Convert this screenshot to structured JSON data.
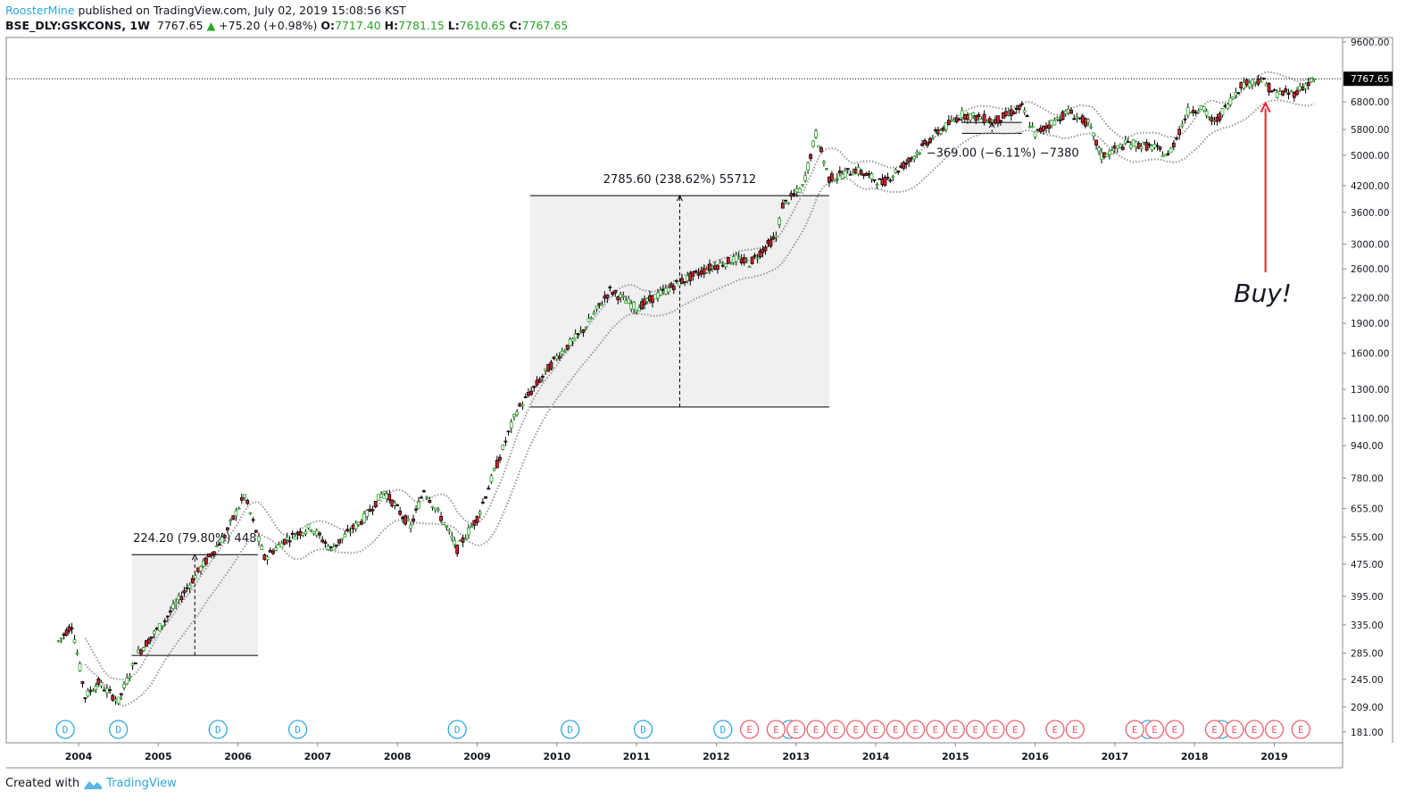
{
  "header": {
    "author": "RoosterMine",
    "published": "published on TradingView.com, July 02, 2019 15:08:56 KST",
    "symbol": "BSE_DLY:GSKCONS, 1W",
    "last": "7767.65",
    "change": "+75.20 (+0.98%)",
    "open_label": "O:",
    "open": "7717.40",
    "high_label": "H:",
    "high": "7781.15",
    "low_label": "L:",
    "low": "7610.65",
    "close_label": "C:",
    "close": "7767.65",
    "up_icon": "triangle-up-icon"
  },
  "footer": {
    "created_with": "Created with",
    "brand": "TradingView"
  },
  "colors": {
    "up": "#26a526",
    "down": "#e0202b",
    "accent": "#2ea6e0",
    "earnings": "#f05d6c",
    "arrow": "#e8202b",
    "box": "#f0f0f0"
  },
  "chart_data": {
    "type": "candlestick",
    "scale": "log",
    "ylim": [
      181,
      9600
    ],
    "xlim": [
      "2003-07",
      "2019-12"
    ],
    "y_ticks": [
      "9600.00",
      "6800.00",
      "5800.00",
      "5000.00",
      "4200.00",
      "3600.00",
      "3000.00",
      "2600.00",
      "2200.00",
      "1900.00",
      "1600.00",
      "1300.00",
      "1100.00",
      "940.00",
      "780.00",
      "655.00",
      "555.00",
      "475.00",
      "395.00",
      "335.00",
      "285.00",
      "245.00",
      "209.00",
      "181.00"
    ],
    "x_ticks": [
      "2004",
      "2005",
      "2006",
      "2007",
      "2008",
      "2009",
      "2010",
      "2011",
      "2012",
      "2013",
      "2014",
      "2015",
      "2016",
      "2017",
      "2018",
      "2019"
    ],
    "last_price_label": "7767.65",
    "grid": false,
    "series": [
      [
        "2003-10",
        305
      ],
      [
        "2003-12",
        335
      ],
      [
        "2004-02",
        222
      ],
      [
        "2004-04",
        240
      ],
      [
        "2004-07",
        216
      ],
      [
        "2004-10",
        285
      ],
      [
        "2005-02",
        344
      ],
      [
        "2005-07",
        455
      ],
      [
        "2005-11",
        560
      ],
      [
        "2006-02",
        706
      ],
      [
        "2006-05",
        492
      ],
      [
        "2006-08",
        545
      ],
      [
        "2006-12",
        589
      ],
      [
        "2007-03",
        518
      ],
      [
        "2007-08",
        620
      ],
      [
        "2007-11",
        724
      ],
      [
        "2008-03",
        589
      ],
      [
        "2008-05",
        730
      ],
      [
        "2008-08",
        605
      ],
      [
        "2008-10",
        518
      ],
      [
        "2009-01",
        620
      ],
      [
        "2009-04",
        845
      ],
      [
        "2009-07",
        1150
      ],
      [
        "2009-10",
        1340
      ],
      [
        "2010-01",
        1566
      ],
      [
        "2010-05",
        1830
      ],
      [
        "2010-09",
        2300
      ],
      [
        "2011-01",
        2075
      ],
      [
        "2011-07",
        2385
      ],
      [
        "2011-12",
        2617
      ],
      [
        "2012-04",
        2755
      ],
      [
        "2012-06",
        2690
      ],
      [
        "2012-10",
        3130
      ],
      [
        "2012-11",
        3750
      ],
      [
        "2013-02",
        4160
      ],
      [
        "2013-04",
        5650
      ],
      [
        "2013-06",
        4370
      ],
      [
        "2013-10",
        4600
      ],
      [
        "2014-02",
        4260
      ],
      [
        "2014-06",
        4850
      ],
      [
        "2014-10",
        5650
      ],
      [
        "2015-02",
        6330
      ],
      [
        "2015-07",
        6100
      ],
      [
        "2015-11",
        6590
      ],
      [
        "2016-01",
        5650
      ],
      [
        "2016-06",
        6430
      ],
      [
        "2016-09",
        6000
      ],
      [
        "2016-11",
        4970
      ],
      [
        "2017-03",
        5370
      ],
      [
        "2017-07",
        5230
      ],
      [
        "2017-09",
        4970
      ],
      [
        "2017-12",
        6430
      ],
      [
        "2018-02",
        6590
      ],
      [
        "2018-04",
        6000
      ],
      [
        "2018-08",
        7500
      ],
      [
        "2018-11",
        7740
      ],
      [
        "2019-01",
        7150
      ],
      [
        "2019-04",
        7150
      ],
      [
        "2019-07",
        7767.65
      ]
    ],
    "measurements": [
      {
        "label": "224.20 (79.80%) 448",
        "from": "2004-09",
        "to": "2006-04",
        "low": 281,
        "high": 502
      },
      {
        "label": "2785.60 (238.62%) 55712",
        "from": "2009-09",
        "to": "2013-06",
        "low": 1174,
        "high": 3965
      },
      {
        "label": "−369.00 (−6.11%) −7380",
        "from": "2015-02",
        "to": "2015-11",
        "low": 5671,
        "high": 6040
      }
    ],
    "annotation": {
      "text": "Buy!",
      "date": "2018-11",
      "arrow_from": 2550,
      "arrow_to": 6750
    },
    "events": [
      {
        "type": "D",
        "date": "2003-11"
      },
      {
        "type": "D",
        "date": "2004-07"
      },
      {
        "type": "D",
        "date": "2005-10"
      },
      {
        "type": "D",
        "date": "2006-10"
      },
      {
        "type": "D",
        "date": "2008-10"
      },
      {
        "type": "D",
        "date": "2010-03"
      },
      {
        "type": "D",
        "date": "2011-02"
      },
      {
        "type": "D",
        "date": "2012-02"
      },
      {
        "type": "D",
        "date": "2012-12"
      },
      {
        "type": "D",
        "date": "2017-06"
      },
      {
        "type": "D",
        "date": "2018-05"
      },
      {
        "type": "E",
        "date": "2012-06"
      },
      {
        "type": "E",
        "date": "2012-10"
      },
      {
        "type": "E",
        "date": "2013-01"
      },
      {
        "type": "E",
        "date": "2013-04"
      },
      {
        "type": "E",
        "date": "2013-07"
      },
      {
        "type": "E",
        "date": "2013-10"
      },
      {
        "type": "E",
        "date": "2014-01"
      },
      {
        "type": "E",
        "date": "2014-04"
      },
      {
        "type": "E",
        "date": "2014-07"
      },
      {
        "type": "E",
        "date": "2014-10"
      },
      {
        "type": "E",
        "date": "2015-01"
      },
      {
        "type": "E",
        "date": "2015-04"
      },
      {
        "type": "E",
        "date": "2015-07"
      },
      {
        "type": "E",
        "date": "2015-10"
      },
      {
        "type": "E",
        "date": "2016-04"
      },
      {
        "type": "E",
        "date": "2016-07"
      },
      {
        "type": "E",
        "date": "2017-04"
      },
      {
        "type": "E",
        "date": "2017-07"
      },
      {
        "type": "E",
        "date": "2017-10"
      },
      {
        "type": "E",
        "date": "2018-04"
      },
      {
        "type": "E",
        "date": "2018-07"
      },
      {
        "type": "E",
        "date": "2018-10"
      },
      {
        "type": "E",
        "date": "2019-01"
      },
      {
        "type": "E",
        "date": "2019-05"
      }
    ]
  }
}
